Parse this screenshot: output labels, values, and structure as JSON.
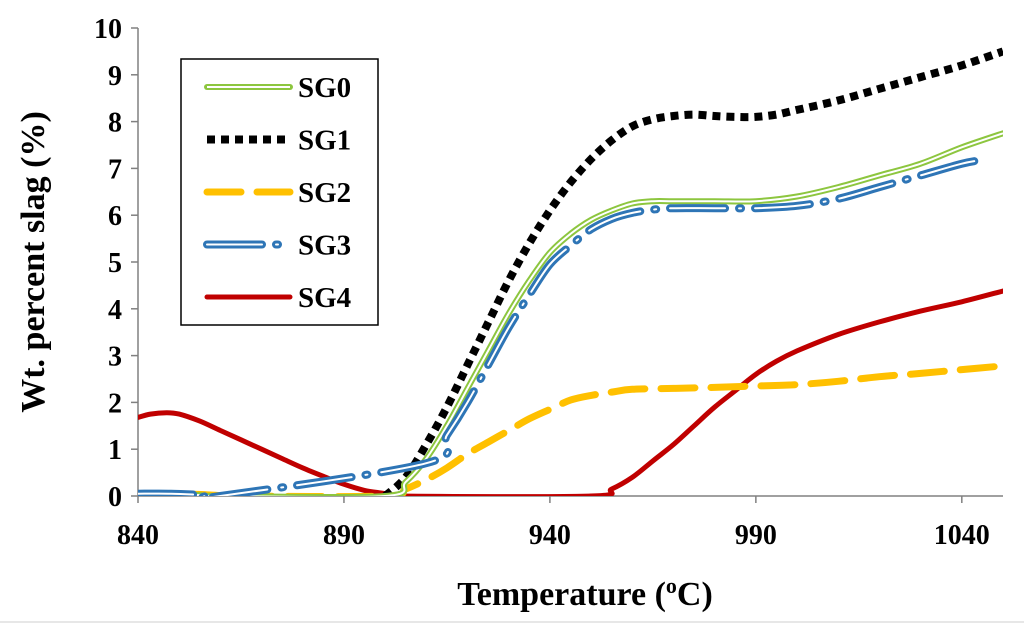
{
  "chart_data": {
    "type": "line",
    "title": "",
    "xlabel": "Temperature (",
    "xlabel_sup": "o",
    "xlabel_unit": "C)",
    "ylabel": "Wt. percent slag (%)",
    "xlim": [
      840,
      1050
    ],
    "ylim": [
      0,
      10
    ],
    "x_ticks": [
      840,
      890,
      940,
      990,
      1040
    ],
    "y_ticks": [
      0,
      1,
      2,
      3,
      4,
      5,
      6,
      7,
      8,
      9,
      10
    ],
    "grid": false,
    "legend_position": "top-left",
    "series": [
      {
        "name": "SG0",
        "color": "#8dc63f",
        "style": "double",
        "points": [
          [
            840,
            0.05
          ],
          [
            845,
            0.05
          ],
          [
            850,
            0.04
          ],
          [
            855,
            0.02
          ],
          [
            860,
            0
          ],
          [
            900,
            0
          ],
          [
            905,
            0.3
          ],
          [
            910,
            0.8
          ],
          [
            915,
            1.5
          ],
          [
            920,
            2.3
          ],
          [
            925,
            3.1
          ],
          [
            930,
            3.9
          ],
          [
            935,
            4.6
          ],
          [
            940,
            5.2
          ],
          [
            945,
            5.6
          ],
          [
            950,
            5.9
          ],
          [
            955,
            6.1
          ],
          [
            960,
            6.25
          ],
          [
            965,
            6.3
          ],
          [
            970,
            6.3
          ],
          [
            980,
            6.3
          ],
          [
            990,
            6.3
          ],
          [
            1000,
            6.4
          ],
          [
            1010,
            6.6
          ],
          [
            1020,
            6.85
          ],
          [
            1030,
            7.1
          ],
          [
            1040,
            7.45
          ],
          [
            1050,
            7.75
          ]
        ]
      },
      {
        "name": "SG1",
        "color": "#000000",
        "style": "dotted",
        "points": [
          [
            900,
            0
          ],
          [
            905,
            0.4
          ],
          [
            910,
            1.1
          ],
          [
            915,
            1.9
          ],
          [
            920,
            2.8
          ],
          [
            925,
            3.7
          ],
          [
            930,
            4.6
          ],
          [
            935,
            5.4
          ],
          [
            940,
            6.1
          ],
          [
            945,
            6.7
          ],
          [
            950,
            7.2
          ],
          [
            955,
            7.6
          ],
          [
            960,
            7.9
          ],
          [
            965,
            8.05
          ],
          [
            970,
            8.12
          ],
          [
            975,
            8.15
          ],
          [
            980,
            8.12
          ],
          [
            985,
            8.1
          ],
          [
            990,
            8.1
          ],
          [
            995,
            8.15
          ],
          [
            1000,
            8.25
          ],
          [
            1010,
            8.45
          ],
          [
            1020,
            8.7
          ],
          [
            1030,
            8.95
          ],
          [
            1040,
            9.2
          ],
          [
            1050,
            9.5
          ]
        ]
      },
      {
        "name": "SG2",
        "color": "#ffc000",
        "style": "dashed",
        "points": [
          [
            840,
            0.05
          ],
          [
            850,
            0.05
          ],
          [
            858,
            0.02
          ],
          [
            865,
            0
          ],
          [
            900,
            0
          ],
          [
            905,
            0.15
          ],
          [
            910,
            0.35
          ],
          [
            915,
            0.6
          ],
          [
            920,
            0.9
          ],
          [
            925,
            1.15
          ],
          [
            930,
            1.4
          ],
          [
            935,
            1.65
          ],
          [
            940,
            1.85
          ],
          [
            945,
            2.05
          ],
          [
            950,
            2.15
          ],
          [
            955,
            2.22
          ],
          [
            960,
            2.28
          ],
          [
            970,
            2.3
          ],
          [
            980,
            2.32
          ],
          [
            990,
            2.35
          ],
          [
            1000,
            2.38
          ],
          [
            1010,
            2.45
          ],
          [
            1020,
            2.55
          ],
          [
            1030,
            2.62
          ],
          [
            1040,
            2.7
          ],
          [
            1050,
            2.78
          ]
        ]
      },
      {
        "name": "SG3",
        "color": "#2e75b6",
        "style": "outlined",
        "points": [
          [
            840,
            0.05
          ],
          [
            848,
            0.05
          ],
          [
            856,
            0.02
          ],
          [
            860,
            0
          ],
          [
            910,
            0.7
          ],
          [
            915,
            1.3
          ],
          [
            920,
            2.0
          ],
          [
            925,
            2.8
          ],
          [
            930,
            3.6
          ],
          [
            935,
            4.3
          ],
          [
            940,
            4.95
          ],
          [
            945,
            5.35
          ],
          [
            950,
            5.7
          ],
          [
            955,
            5.92
          ],
          [
            960,
            6.05
          ],
          [
            965,
            6.12
          ],
          [
            970,
            6.15
          ],
          [
            980,
            6.15
          ],
          [
            990,
            6.15
          ],
          [
            1000,
            6.2
          ],
          [
            1010,
            6.35
          ],
          [
            1020,
            6.6
          ],
          [
            1030,
            6.85
          ],
          [
            1040,
            7.1
          ],
          [
            1045,
            7.18
          ]
        ]
      },
      {
        "name": "SG4",
        "color": "#c00000",
        "style": "solid",
        "points": [
          [
            840,
            1.68
          ],
          [
            843,
            1.75
          ],
          [
            847,
            1.78
          ],
          [
            850,
            1.75
          ],
          [
            855,
            1.6
          ],
          [
            860,
            1.4
          ],
          [
            865,
            1.2
          ],
          [
            870,
            1.0
          ],
          [
            875,
            0.8
          ],
          [
            880,
            0.6
          ],
          [
            885,
            0.42
          ],
          [
            890,
            0.25
          ],
          [
            895,
            0.12
          ],
          [
            900,
            0.05
          ],
          [
            903,
            0
          ],
          [
            950,
            0
          ],
          [
            955,
            0.15
          ],
          [
            960,
            0.4
          ],
          [
            965,
            0.75
          ],
          [
            970,
            1.1
          ],
          [
            975,
            1.5
          ],
          [
            980,
            1.9
          ],
          [
            985,
            2.25
          ],
          [
            990,
            2.6
          ],
          [
            995,
            2.88
          ],
          [
            1000,
            3.1
          ],
          [
            1010,
            3.45
          ],
          [
            1020,
            3.72
          ],
          [
            1030,
            3.95
          ],
          [
            1040,
            4.15
          ],
          [
            1050,
            4.38
          ]
        ]
      }
    ]
  }
}
